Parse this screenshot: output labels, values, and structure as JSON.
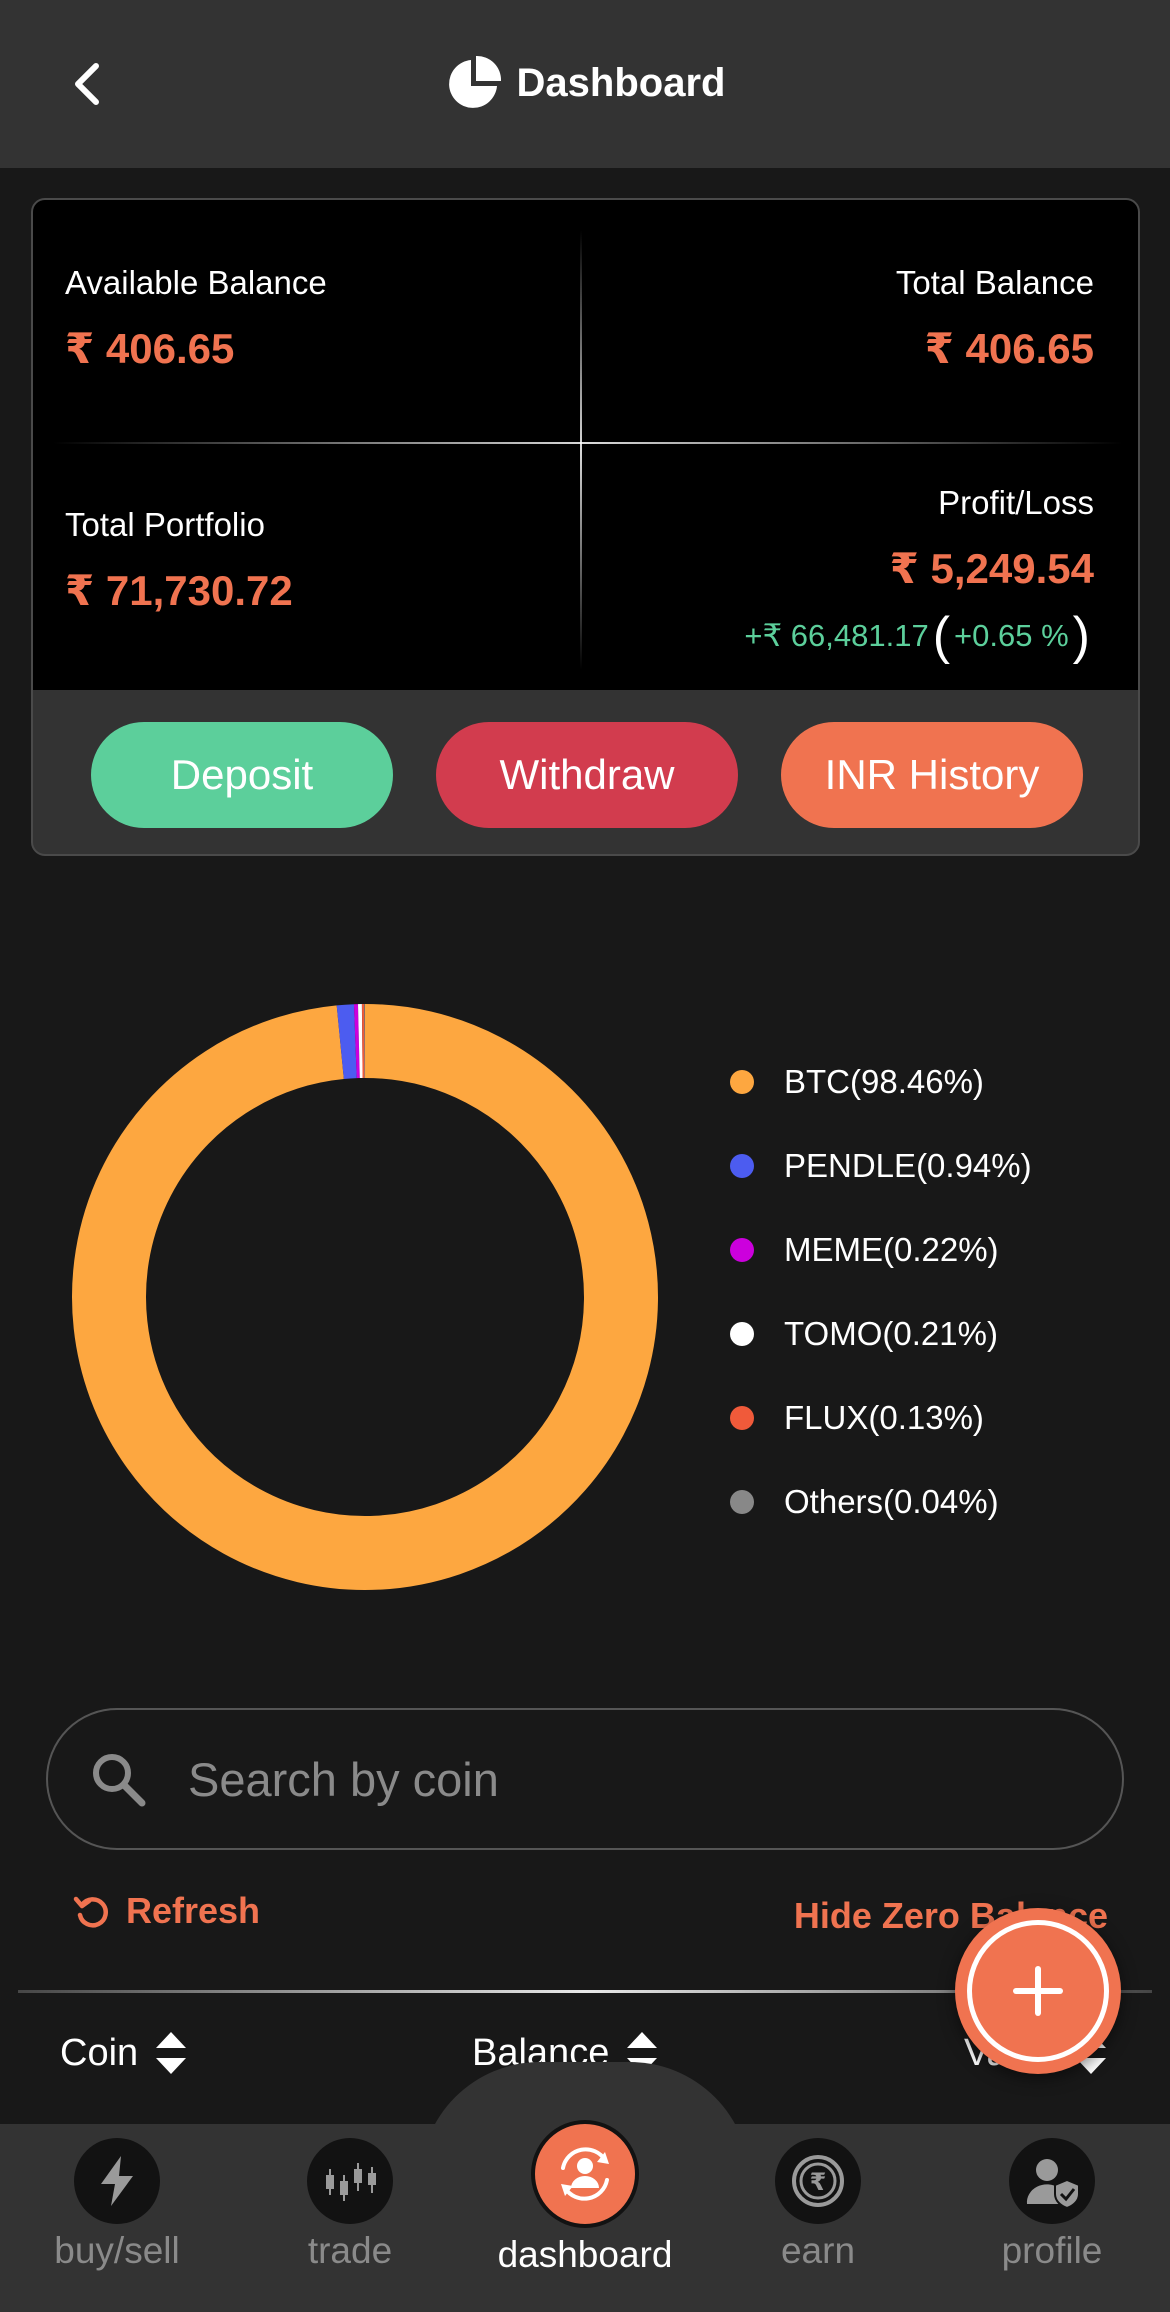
{
  "header": {
    "title": "Dashboard"
  },
  "balances": {
    "available_label": "Available Balance",
    "available_value": "₹ 406.65",
    "total_label": "Total Balance",
    "total_value": "₹ 406.65",
    "portfolio_label": "Total Portfolio",
    "portfolio_value": "₹ 71,730.72",
    "pl_label": "Profit/Loss",
    "pl_value": "₹ 5,249.54",
    "pl_change": "+₹ 66,481.17",
    "pl_change_pct": "+0.65 %"
  },
  "actions": {
    "deposit": "Deposit",
    "withdraw": "Withdraw",
    "history": "INR History"
  },
  "chart_data": {
    "type": "pie",
    "variant": "donut",
    "slices": [
      {
        "label": "BTC",
        "pct_label": "(98.46%)",
        "value": 98.46,
        "color": "#fda740"
      },
      {
        "label": "PENDLE",
        "pct_label": "(0.94%)",
        "value": 0.94,
        "color": "#4c5cf0"
      },
      {
        "label": "MEME",
        "pct_label": "(0.22%)",
        "value": 0.22,
        "color": "#cc00dd"
      },
      {
        "label": "TOMO",
        "pct_label": "(0.21%)",
        "value": 0.21,
        "color": "#ffffff"
      },
      {
        "label": "FLUX",
        "pct_label": "(0.13%)",
        "value": 0.13,
        "color": "#f05a3a"
      },
      {
        "label": "Others",
        "pct_label": "(0.04%)",
        "value": 0.04,
        "color": "#888888"
      }
    ],
    "legend_position": "right"
  },
  "search": {
    "placeholder": "Search by coin"
  },
  "controls": {
    "refresh": "Refresh",
    "hide_zero": "Hide Zero Balance"
  },
  "table": {
    "columns": [
      "Coin",
      "Balance",
      "Value"
    ]
  },
  "nav": {
    "items": [
      {
        "label": "buy/sell",
        "icon": "lightning-icon"
      },
      {
        "label": "trade",
        "icon": "candlestick-icon"
      },
      {
        "label": "dashboard",
        "icon": "dashboard-user-icon"
      },
      {
        "label": "earn",
        "icon": "rupee-coin-icon"
      },
      {
        "label": "profile",
        "icon": "profile-shield-icon"
      }
    ],
    "active": "dashboard"
  },
  "colors": {
    "accent": "#f07350",
    "green": "#5ccf9b",
    "red": "#d23c4e",
    "header": "#333333",
    "background": "#181818"
  }
}
